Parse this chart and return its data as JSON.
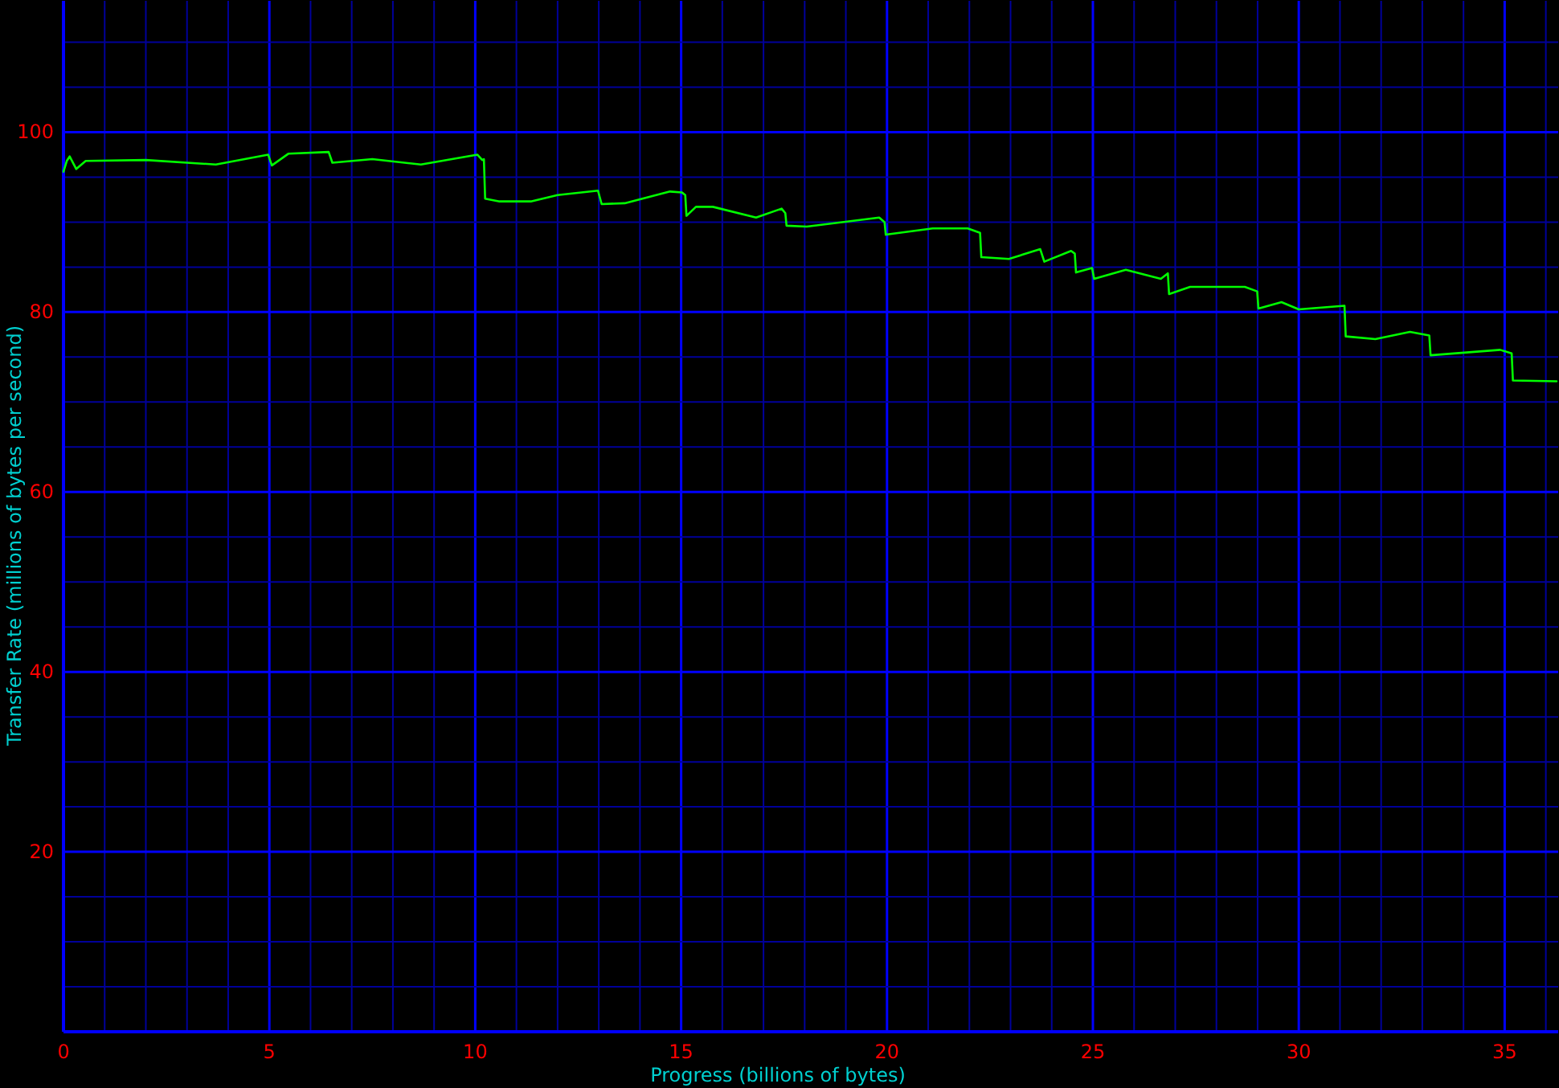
{
  "chart_data": {
    "type": "line",
    "xlabel": "Progress (billions of bytes)",
    "ylabel": "Transfer Rate (millions of bytes per second)",
    "xlim": [
      0,
      36.3
    ],
    "ylim": [
      0,
      114.6
    ],
    "xticks": [
      0,
      {
        "value": 1,
        "label": null
      },
      {
        "value": 2,
        "label": null
      },
      {
        "value": 3,
        "label": null
      },
      {
        "value": 4,
        "label": null
      },
      5,
      {
        "value": 6,
        "label": null
      },
      {
        "value": 7,
        "label": null
      },
      {
        "value": 8,
        "label": null
      },
      {
        "value": 9,
        "label": null
      },
      10,
      {
        "value": 11,
        "label": null
      },
      {
        "value": 12,
        "label": null
      },
      {
        "value": 13,
        "label": null
      },
      {
        "value": 14,
        "label": null
      },
      15,
      {
        "value": 16,
        "label": null
      },
      {
        "value": 17,
        "label": null
      },
      {
        "value": 18,
        "label": null
      },
      {
        "value": 19,
        "label": null
      },
      20,
      {
        "value": 21,
        "label": null
      },
      {
        "value": 22,
        "label": null
      },
      {
        "value": 23,
        "label": null
      },
      {
        "value": 24,
        "label": null
      },
      25,
      {
        "value": 26,
        "label": null
      },
      {
        "value": 27,
        "label": null
      },
      {
        "value": 28,
        "label": null
      },
      {
        "value": 29,
        "label": null
      },
      30,
      {
        "value": 31,
        "label": null
      },
      {
        "value": 32,
        "label": null
      },
      {
        "value": 33,
        "label": null
      },
      {
        "value": 34,
        "label": null
      },
      35,
      {
        "value": 36,
        "label": null
      }
    ],
    "yticks": [
      {
        "value": 0,
        "label": null
      },
      {
        "value": 5,
        "label": null
      },
      {
        "value": 10,
        "label": null
      },
      {
        "value": 15,
        "label": null
      },
      20,
      {
        "value": 25,
        "label": null
      },
      {
        "value": 30,
        "label": null
      },
      {
        "value": 35,
        "label": null
      },
      40,
      {
        "value": 45,
        "label": null
      },
      {
        "value": 50,
        "label": null
      },
      {
        "value": 55,
        "label": null
      },
      60,
      {
        "value": 65,
        "label": null
      },
      {
        "value": 70,
        "label": null
      },
      {
        "value": 75,
        "label": null
      },
      80,
      {
        "value": 85,
        "label": null
      },
      {
        "value": 90,
        "label": null
      },
      {
        "value": 95,
        "label": null
      },
      100,
      {
        "value": 105,
        "label": null
      },
      {
        "value": 110,
        "label": null
      }
    ],
    "grid": true,
    "x": [
      0,
      0.08,
      0.15,
      0.31,
      0.54,
      2.0,
      3.7,
      4.97,
      5.06,
      5.46,
      6.44,
      6.53,
      7.5,
      8.68,
      10.05,
      10.17,
      10.21,
      10.24,
      10.59,
      11.35,
      12.0,
      12.98,
      13.07,
      13.63,
      14.73,
      15.02,
      15.1,
      15.13,
      15.36,
      15.77,
      16.82,
      17.44,
      17.53,
      17.56,
      18.05,
      19.81,
      19.94,
      19.97,
      21.11,
      21.96,
      22.26,
      22.29,
      22.96,
      23.72,
      23.82,
      24.47,
      24.56,
      24.59,
      24.98,
      25.03,
      25.8,
      26.65,
      26.82,
      26.85,
      27.36,
      28.69,
      28.99,
      29.02,
      29.58,
      30.0,
      31.11,
      31.14,
      31.86,
      32.7,
      33.17,
      33.2,
      34.89,
      35.17,
      35.2,
      36.26
    ],
    "series": [
      {
        "color": "#00ff00",
        "values": [
          95.6,
          96.8,
          97.3,
          95.9,
          96.8,
          96.9,
          96.4,
          97.5,
          96.3,
          97.6,
          97.8,
          96.6,
          97.0,
          96.4,
          97.5,
          96.9,
          97.0,
          92.6,
          92.3,
          92.3,
          93.0,
          93.5,
          92.0,
          92.1,
          93.4,
          93.3,
          93.0,
          90.7,
          91.7,
          91.7,
          90.5,
          91.5,
          91.0,
          89.6,
          89.5,
          90.5,
          90.0,
          88.6,
          89.3,
          89.3,
          88.8,
          86.1,
          85.9,
          87.0,
          85.6,
          86.8,
          86.5,
          84.4,
          84.9,
          83.7,
          84.7,
          83.7,
          84.3,
          82.0,
          82.8,
          82.8,
          82.3,
          80.4,
          81.1,
          80.3,
          80.7,
          77.3,
          77.0,
          77.8,
          77.4,
          75.2,
          75.8,
          75.4,
          72.4,
          72.3
        ]
      }
    ]
  }
}
